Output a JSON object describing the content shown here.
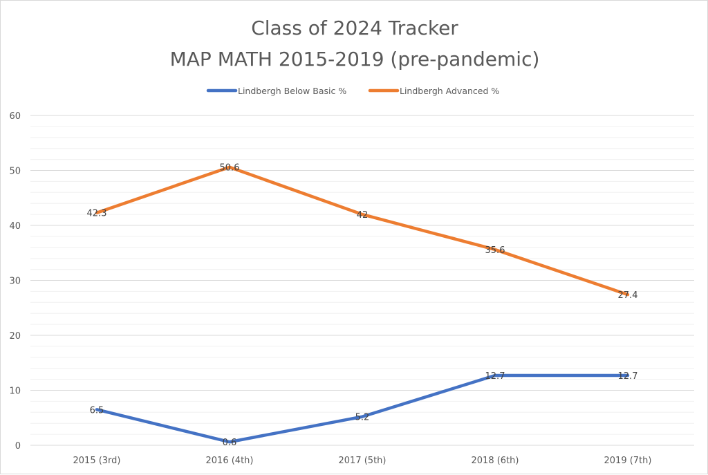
{
  "chart_data": {
    "type": "line",
    "title": "Class of 2024 Tracker",
    "subtitle": "MAP MATH 2015-2019 (pre-pandemic)",
    "categories": [
      "2015 (3rd)",
      "2016 (4th)",
      "2017 (5th)",
      "2018 (6th)",
      "2019 (7th)"
    ],
    "series": [
      {
        "name": "Lindbergh Below Basic %",
        "values": [
          6.5,
          0.6,
          5.2,
          12.7,
          12.7
        ],
        "labels": [
          "6.5",
          "0.6",
          "5.2",
          "12.7",
          "12.7"
        ],
        "color": "#4472c4"
      },
      {
        "name": "Lindbergh Advanced %",
        "values": [
          42.3,
          50.6,
          42,
          35.6,
          27.4
        ],
        "labels": [
          "42.3",
          "50.6",
          "42",
          "35.6",
          "27.4"
        ],
        "color": "#ed7d31"
      }
    ],
    "ylim": [
      0,
      60
    ],
    "yticks": [
      "0",
      "10",
      "20",
      "30",
      "40",
      "50",
      "60"
    ],
    "ytick_values": [
      0,
      10,
      20,
      30,
      40,
      50,
      60
    ],
    "grid": true,
    "legend_position": "top",
    "gridline_color": "#d9d9d9",
    "minor_gridline_color": "#f0f0f0"
  }
}
